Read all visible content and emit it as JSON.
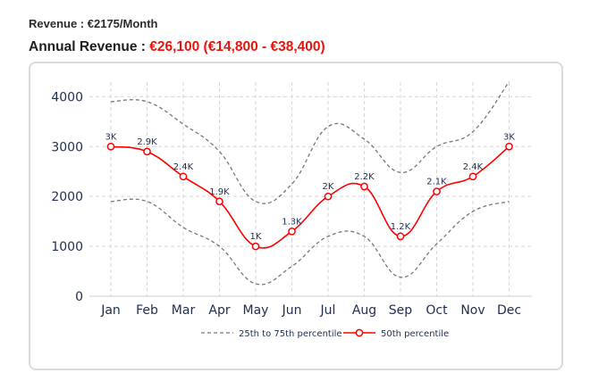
{
  "header": {
    "monthly_label": "Revenue : ",
    "monthly_value": "€2175/Month",
    "annual_label": "Annual Revenue : ",
    "annual_value": "€26,100 (€14,800 - €38,400)"
  },
  "colors": {
    "accent": "#e8140c",
    "median_line": "#ff0000",
    "percentile_band": "#777777",
    "axis_text": "#1f2d4f",
    "grid": "#d6d6d6"
  },
  "chart_data": {
    "type": "line",
    "categories": [
      "Jan",
      "Feb",
      "Mar",
      "Apr",
      "May",
      "Jun",
      "Jul",
      "Aug",
      "Sep",
      "Oct",
      "Nov",
      "Dec"
    ],
    "y_ticks": [
      0,
      1000,
      2000,
      3000,
      4000
    ],
    "ylim": [
      0,
      4400
    ],
    "grid": true,
    "legend_position": "bottom",
    "series": [
      {
        "name": "25th to 75th percentile",
        "role": "upper",
        "style": "dashed",
        "values": [
          3900,
          3900,
          3450,
          2900,
          1900,
          2250,
          3400,
          3150,
          2480,
          3000,
          3300,
          4300
        ]
      },
      {
        "name": "25th to 75th percentile",
        "role": "lower",
        "style": "dashed",
        "values": [
          1900,
          1900,
          1380,
          1000,
          250,
          600,
          1200,
          1200,
          380,
          1050,
          1700,
          1900
        ]
      },
      {
        "name": "50th percentile",
        "role": "median",
        "style": "solid-markers",
        "values": [
          3000,
          2900,
          2400,
          1900,
          1000,
          1300,
          2000,
          2200,
          1200,
          2100,
          2400,
          3000
        ],
        "labels": [
          "3K",
          "2.9K",
          "2.4K",
          "1.9K",
          "1K",
          "1.3K",
          "2K",
          "2.2K",
          "1.2K",
          "2.1K",
          "2.4K",
          "3K"
        ]
      }
    ],
    "legend": [
      {
        "label": "25th to 75th percentile",
        "style": "dashed"
      },
      {
        "label": "50th percentile",
        "style": "solid-markers"
      }
    ]
  }
}
